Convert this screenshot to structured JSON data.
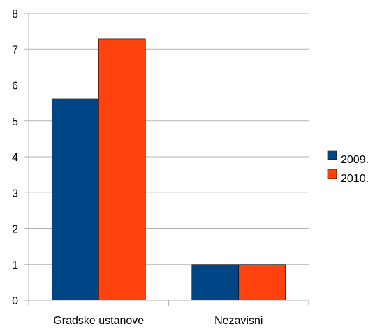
{
  "chart_data": {
    "type": "bar",
    "categories": [
      "Gradske ustanove",
      "Nezavisni"
    ],
    "series": [
      {
        "name": "2009.",
        "values": [
          5.62,
          1.0
        ],
        "color": "#004586"
      },
      {
        "name": "2010.",
        "values": [
          7.28,
          1.0
        ],
        "color": "#ff420e"
      }
    ],
    "ylim": [
      0,
      8
    ],
    "yticks": [
      0,
      1,
      2,
      3,
      4,
      5,
      6,
      7,
      8
    ],
    "grid": true,
    "legend": "right",
    "title": "",
    "xlabel": "",
    "ylabel": ""
  }
}
